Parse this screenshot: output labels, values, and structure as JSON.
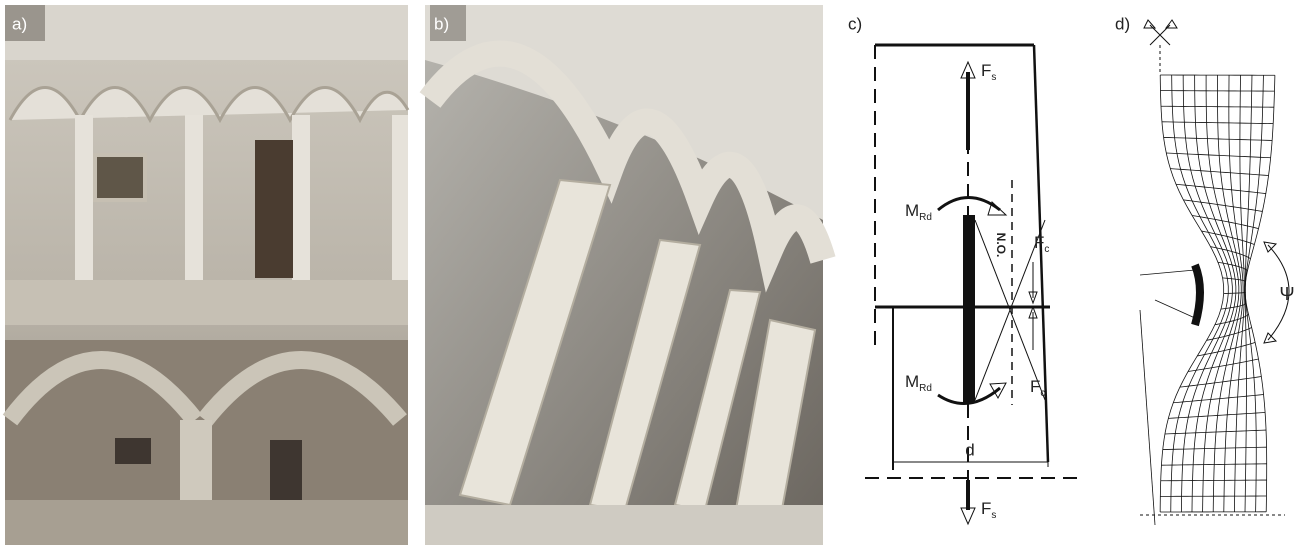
{
  "panels": [
    {
      "label": "a)"
    },
    {
      "label": "b)"
    },
    {
      "label": "c)"
    },
    {
      "label": "d)"
    }
  ],
  "diagram_c": {
    "tension_top": {
      "main": "F",
      "sub": "s"
    },
    "moment_top": {
      "main": "M",
      "sub": "Rd"
    },
    "compression_top": {
      "main": "F",
      "sub": "c"
    },
    "neutral_axis": "N.O.",
    "moment_bottom": {
      "main": "M",
      "sub": "Rd"
    },
    "compression_bottom": {
      "main": "F",
      "sub": "c"
    },
    "lever_arm": "d",
    "tension_bottom": {
      "main": "F",
      "sub": "s"
    }
  },
  "diagram_d": {
    "angle": "Ψ"
  }
}
